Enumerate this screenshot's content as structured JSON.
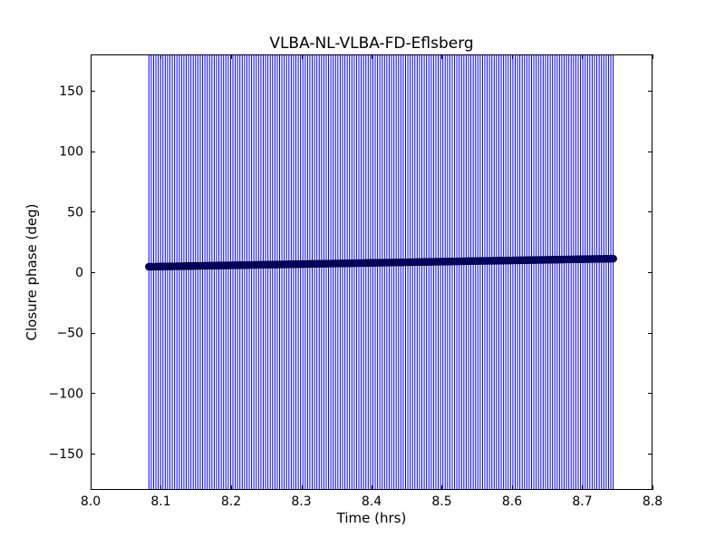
{
  "chart_data": {
    "type": "scatter",
    "title": "VLBA-NL-VLBA-FD-Eflsberg",
    "xlabel": "Time (hrs)",
    "ylabel": "Closure phase (deg)",
    "xlim": [
      8.0,
      8.8
    ],
    "ylim": [
      -180,
      180
    ],
    "xticks": [
      8.0,
      8.1,
      8.2,
      8.3,
      8.4,
      8.5,
      8.6,
      8.7,
      8.8
    ],
    "xtick_labels": [
      "8.0",
      "8.1",
      "8.2",
      "8.3",
      "8.4",
      "8.5",
      "8.6",
      "8.7",
      "8.8"
    ],
    "yticks": [
      150,
      100,
      50,
      0,
      -50,
      -100,
      -150
    ],
    "ytick_labels": [
      "150",
      "100",
      "50",
      "0",
      "−50",
      "−100",
      "−150"
    ],
    "grid": false,
    "legend": "none",
    "series": [
      {
        "marker": "circle",
        "error_bars": "vertical, spanning the full phase range",
        "color": "#0000ff",
        "marker_color": "#000080",
        "x_start": 8.083,
        "x_end": 8.744,
        "y_start": 4.5,
        "y_end": 11.2,
        "point_count": 200
      }
    ]
  }
}
